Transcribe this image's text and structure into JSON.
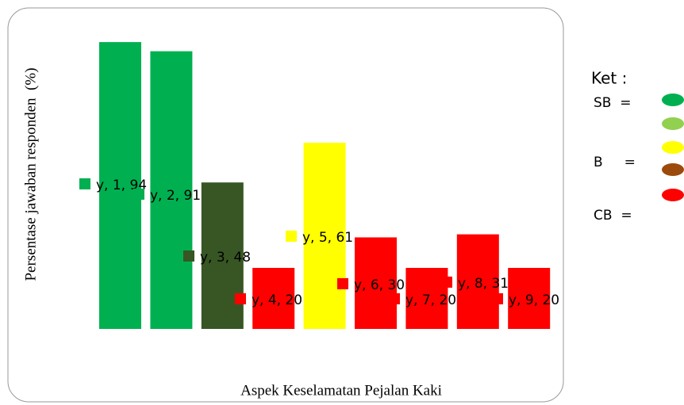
{
  "chart_data": {
    "type": "bar",
    "xlabel": "Aspek Keselamatan Pejalan Kaki",
    "ylabel": "Persentase jawaban responden  (%)",
    "values": [
      94,
      91,
      48,
      20,
      61,
      30,
      20,
      31,
      20
    ],
    "value_labels": [
      "y, 1, 94",
      "y, 2, 91",
      "y, 3, 48",
      "y, 4, 20",
      "y, 5, 61",
      "y, 6, 30",
      "y, 7, 20",
      "y, 8, 31",
      "y, 9, 20"
    ],
    "colors": [
      "#00b050",
      "#00b050",
      "#375623",
      "#ff0000",
      "#ffff00",
      "#ff0000",
      "#ff0000",
      "#ff0000",
      "#ff0000"
    ],
    "ylim": [
      0,
      100
    ],
    "legend": {
      "title": "Ket :",
      "labels": [
        "SB  =",
        "B     =",
        "CB  ="
      ],
      "colors": [
        "#00b050",
        "#92d050",
        "#ffff00",
        "#9c4a0b",
        "#ff0000"
      ]
    }
  }
}
